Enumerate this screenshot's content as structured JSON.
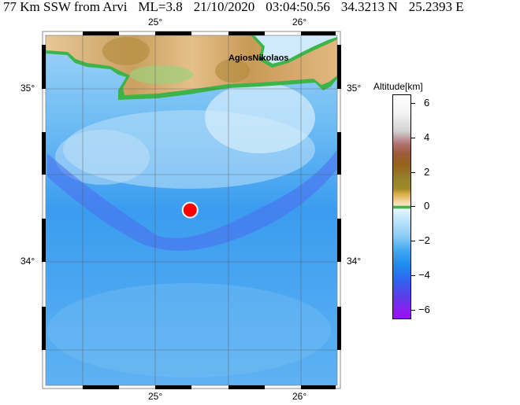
{
  "header": {
    "location": "77 Km SSW from Arvi",
    "magnitude": "ML=3.8",
    "date": "21/10/2020",
    "time": "03:04:50.56",
    "latitude": "34.3213 N",
    "longitude": "25.2393 E"
  },
  "map": {
    "lon_labels": [
      "25°",
      "26°"
    ],
    "lat_labels": [
      "35°",
      "34°"
    ],
    "place_label": "AgiosNikolaos",
    "epicenter": {
      "lat": 34.3213,
      "lon": 25.2393,
      "color": "#ff0000"
    }
  },
  "colorbar": {
    "title": "Altitude[km]",
    "ticks": [
      "6",
      "4",
      "2",
      "0",
      "−2",
      "−4",
      "−6"
    ],
    "range": [
      -6.5,
      6.5
    ]
  }
}
